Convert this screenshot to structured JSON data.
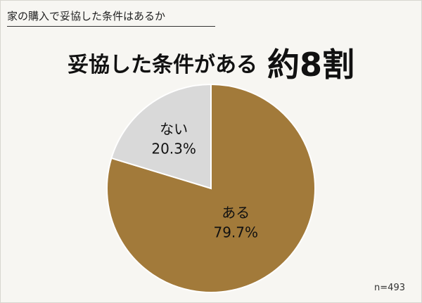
{
  "question": "家の購入で妥協した条件はあるか",
  "headline": {
    "text": "妥協した条件がある",
    "highlight": "約8割"
  },
  "chart_data": {
    "type": "pie",
    "title": "家の購入で妥協した条件はあるか",
    "slices": [
      {
        "label": "ある",
        "value": 79.7,
        "value_label": "79.7%",
        "color": "#a27a3a"
      },
      {
        "label": "ない",
        "value": 20.3,
        "value_label": "20.3%",
        "color": "#d9d9d9"
      }
    ],
    "start_angle": "12 o'clock",
    "direction": "clockwise"
  },
  "footnote": "n=493"
}
